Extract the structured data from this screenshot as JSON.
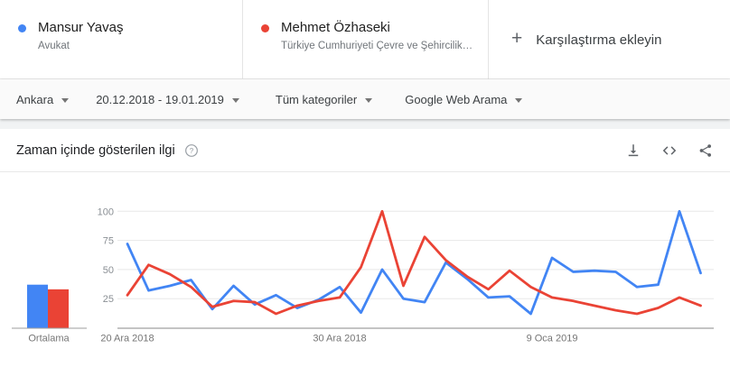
{
  "header": {
    "terms": [
      {
        "title": "Mansur Yavaş",
        "subtitle": "Avukat",
        "color": "#4285f4"
      },
      {
        "title": "Mehmet Özhaseki",
        "subtitle": "Türkiye Cumhuriyeti Çevre ve Şehircilik B...",
        "color": "#ea4335"
      }
    ],
    "add_comparison": {
      "plus": "+",
      "label": "Karşılaştırma ekleyin"
    }
  },
  "filters": {
    "region": "Ankara",
    "date_range": "20.12.2018 - 19.01.2019",
    "category": "Tüm kategoriler",
    "search_type": "Google Web Arama"
  },
  "chart_card": {
    "title": "Zaman içinde gösterilen ilgi",
    "icons": [
      "download-icon",
      "embed-icon",
      "share-icon"
    ]
  },
  "chart_data": {
    "type": "line",
    "title": "Zaman içinde gösterilen ilgi",
    "x": [
      "20 Ara 2018",
      "21 Ara 2018",
      "22 Ara 2018",
      "23 Ara 2018",
      "24 Ara 2018",
      "25 Ara 2018",
      "26 Ara 2018",
      "27 Ara 2018",
      "28 Ara 2018",
      "29 Ara 2018",
      "30 Ara 2018",
      "31 Ara 2018",
      "1 Oca 2019",
      "2 Oca 2019",
      "3 Oca 2019",
      "4 Oca 2019",
      "5 Oca 2019",
      "6 Oca 2019",
      "7 Oca 2019",
      "8 Oca 2019",
      "9 Oca 2019",
      "10 Oca 2019",
      "11 Oca 2019",
      "12 Oca 2019",
      "13 Oca 2019",
      "14 Oca 2019",
      "15 Oca 2019",
      "16 Oca 2019"
    ],
    "x_ticks": [
      {
        "index": 0,
        "label": "20 Ara 2018"
      },
      {
        "index": 10,
        "label": "30 Ara 2018"
      },
      {
        "index": 20,
        "label": "9 Oca 2019"
      }
    ],
    "y_ticks": [
      25,
      50,
      75,
      100
    ],
    "ylim": [
      0,
      100
    ],
    "grid": true,
    "legend_position": "none",
    "series": [
      {
        "name": "Mansur Yavaş",
        "color": "#4285f4",
        "values": [
          72,
          32,
          36,
          41,
          16,
          36,
          20,
          28,
          17,
          24,
          35,
          13,
          50,
          25,
          22,
          56,
          42,
          26,
          27,
          12,
          60,
          48,
          49,
          48,
          35,
          37,
          100,
          47
        ]
      },
      {
        "name": "Mehmet Özhaseki",
        "color": "#ea4335",
        "values": [
          28,
          54,
          46,
          35,
          18,
          23,
          22,
          12,
          19,
          23,
          26,
          52,
          100,
          36,
          78,
          58,
          44,
          33,
          49,
          35,
          26,
          23,
          19,
          15,
          12,
          17,
          26,
          19
        ]
      }
    ],
    "average": {
      "label": "Ortalama",
      "values": [
        37,
        33
      ]
    }
  }
}
